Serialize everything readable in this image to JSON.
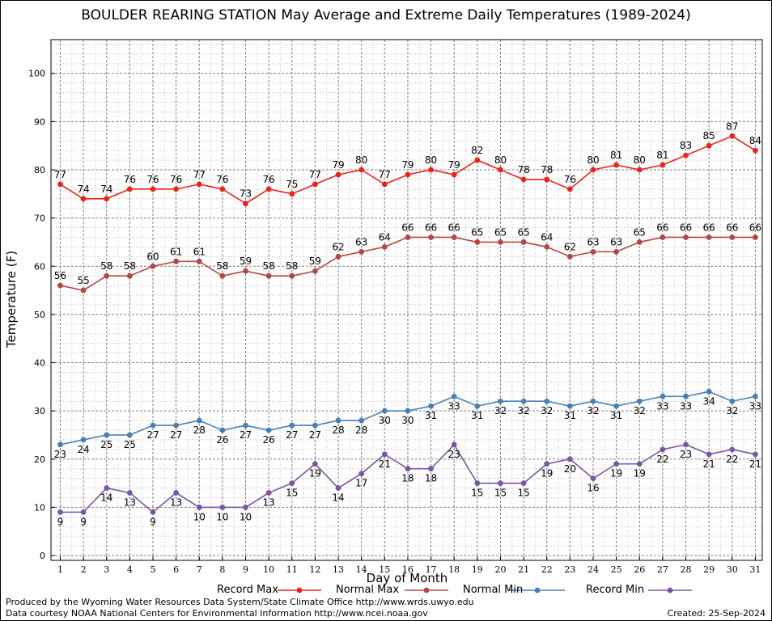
{
  "chart_data": {
    "type": "line",
    "title": "BOULDER REARING STATION May Average and Extreme Daily Temperatures (1989-2024)",
    "xlabel": "Day of Month",
    "ylabel": "Temperature (F)",
    "xlim": [
      0.6,
      31.3
    ],
    "ylim": [
      -1,
      107
    ],
    "yticks": [
      0,
      10,
      20,
      30,
      40,
      50,
      60,
      70,
      80,
      90,
      100
    ],
    "x": [
      1,
      2,
      3,
      4,
      5,
      6,
      7,
      8,
      9,
      10,
      11,
      12,
      13,
      14,
      15,
      16,
      17,
      18,
      19,
      20,
      21,
      22,
      23,
      24,
      25,
      26,
      27,
      28,
      29,
      30,
      31
    ],
    "grid": true,
    "legend": "bottom",
    "series": [
      {
        "name": "Record Max",
        "color": "#e8241f",
        "label_pos": "above",
        "values": [
          77,
          74,
          74,
          76,
          76,
          76,
          77,
          76,
          73,
          76,
          75,
          77,
          79,
          80,
          77,
          79,
          80,
          79,
          82,
          80,
          78,
          78,
          76,
          80,
          81,
          80,
          81,
          83,
          85,
          87,
          84
        ]
      },
      {
        "name": "Normal Max",
        "color": "#b54646",
        "label_pos": "above",
        "values": [
          56,
          55,
          58,
          58,
          60,
          61,
          61,
          58,
          59,
          58,
          58,
          59,
          62,
          63,
          64,
          66,
          66,
          66,
          65,
          65,
          65,
          64,
          62,
          63,
          63,
          65,
          66,
          66,
          66,
          66,
          66
        ]
      },
      {
        "name": "Normal Min",
        "color": "#4a7fb5",
        "label_pos": "below",
        "values": [
          23,
          24,
          25,
          25,
          27,
          27,
          28,
          26,
          27,
          26,
          27,
          27,
          28,
          28,
          30,
          30,
          31,
          33,
          31,
          32,
          32,
          32,
          31,
          32,
          31,
          32,
          33,
          33,
          34,
          32,
          33
        ]
      },
      {
        "name": "Record Min",
        "color": "#7b55a0",
        "label_pos": "below",
        "values": [
          9,
          9,
          14,
          13,
          9,
          13,
          10,
          10,
          10,
          13,
          15,
          19,
          14,
          17,
          21,
          18,
          18,
          23,
          15,
          15,
          15,
          19,
          20,
          16,
          19,
          19,
          22,
          23,
          21,
          22,
          21
        ]
      }
    ]
  },
  "footer": {
    "credit_line_1": "Produced by the Wyoming Water Resources Data System/State Climate Office http://www.wrds.uwyo.edu",
    "credit_line_2": "Data courtesy NOAA National Centers for Environmental Information http://www.ncei.noaa.gov",
    "created": "Created:  25-Sep-2024"
  }
}
